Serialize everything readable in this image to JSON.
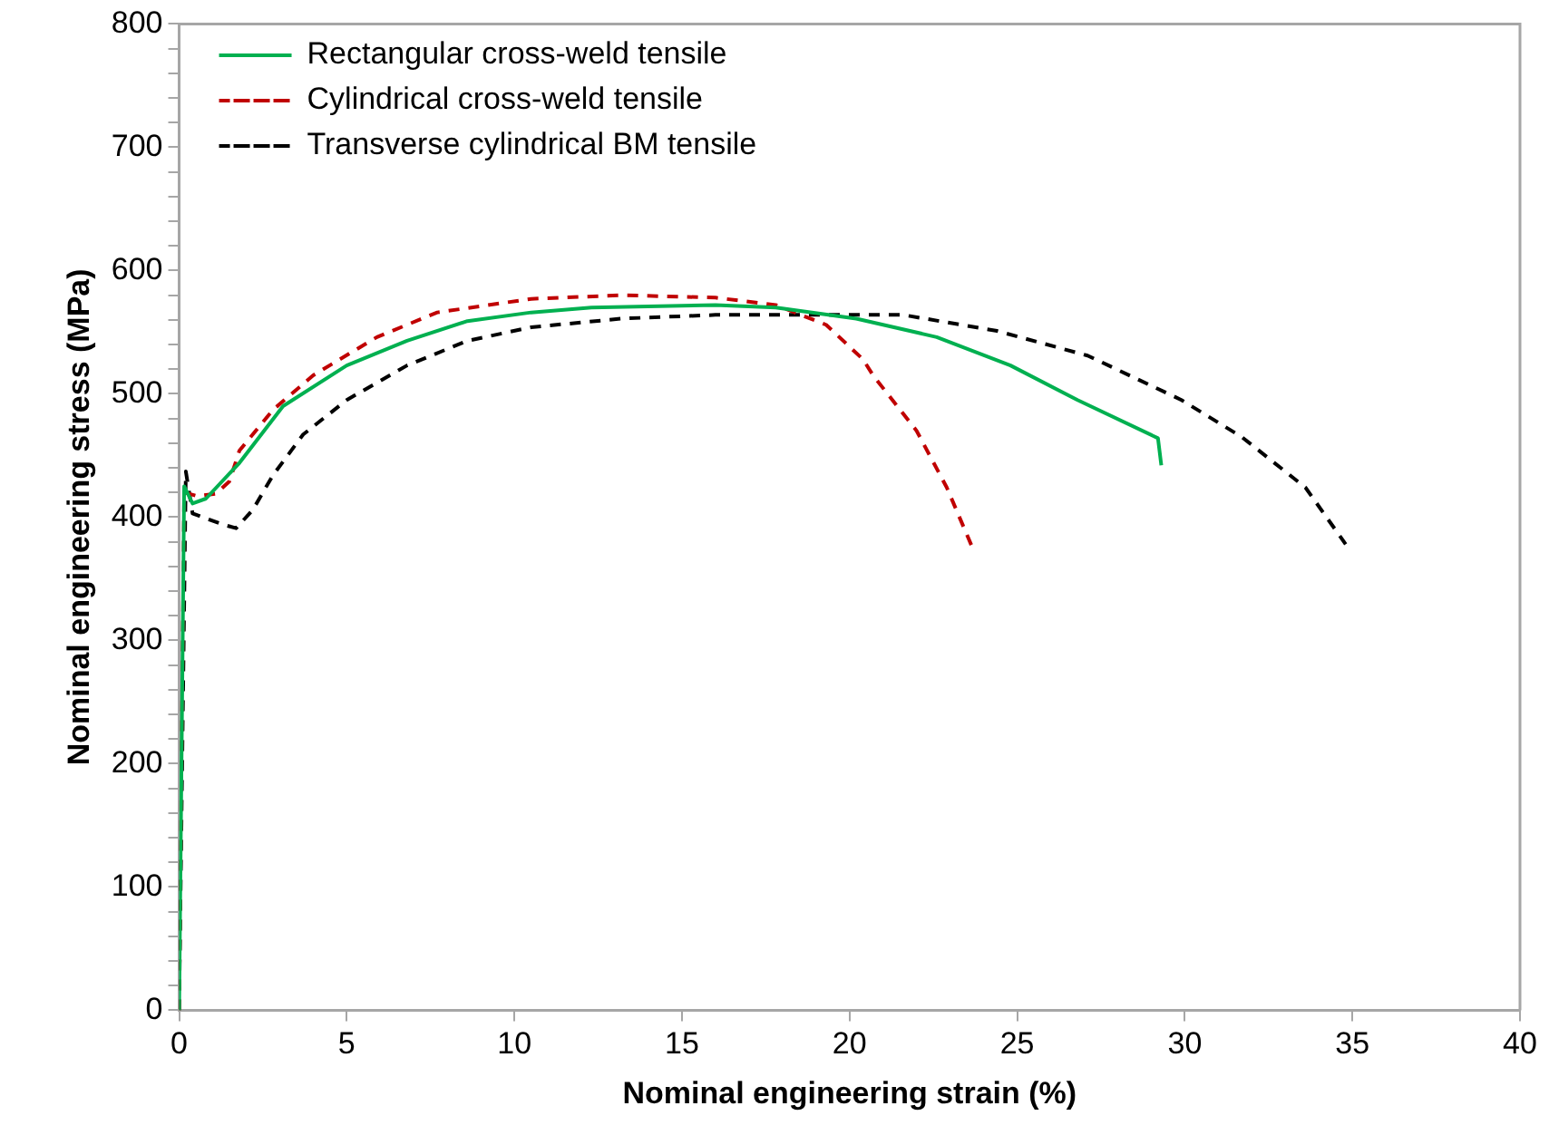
{
  "chart_data": {
    "type": "line",
    "xlabel": "Nominal engineering strain (%)",
    "ylabel": "Nominal engineering stress (MPa)",
    "xlim": [
      0,
      40
    ],
    "xticks": [
      0,
      5,
      10,
      15,
      20,
      25,
      30,
      35,
      40
    ],
    "ylim": [
      0,
      800
    ],
    "yticks": [
      0,
      {
        "value": 20,
        "label": null
      },
      {
        "value": 40,
        "label": null
      },
      {
        "value": 60,
        "label": null
      },
      {
        "value": 80,
        "label": null
      },
      100,
      {
        "value": 120,
        "label": null
      },
      {
        "value": 140,
        "label": null
      },
      {
        "value": 160,
        "label": null
      },
      {
        "value": 180,
        "label": null
      },
      200,
      {
        "value": 220,
        "label": null
      },
      {
        "value": 240,
        "label": null
      },
      {
        "value": 260,
        "label": null
      },
      {
        "value": 280,
        "label": null
      },
      300,
      {
        "value": 320,
        "label": null
      },
      {
        "value": 340,
        "label": null
      },
      {
        "value": 360,
        "label": null
      },
      {
        "value": 380,
        "label": null
      },
      400,
      {
        "value": 420,
        "label": null
      },
      {
        "value": 440,
        "label": null
      },
      {
        "value": 460,
        "label": null
      },
      {
        "value": 480,
        "label": null
      },
      500,
      {
        "value": 520,
        "label": null
      },
      {
        "value": 540,
        "label": null
      },
      {
        "value": 560,
        "label": null
      },
      {
        "value": 580,
        "label": null
      },
      600,
      {
        "value": 620,
        "label": null
      },
      {
        "value": 640,
        "label": null
      },
      {
        "value": 660,
        "label": null
      },
      {
        "value": 680,
        "label": null
      },
      700,
      {
        "value": 720,
        "label": null
      },
      {
        "value": 740,
        "label": null
      },
      {
        "value": 760,
        "label": null
      },
      {
        "value": 780,
        "label": null
      },
      800
    ],
    "grid": false,
    "legend": "top left",
    "marker": "none",
    "series": [
      {
        "name": "Rectangular cross-weld tensile",
        "color": "#00b050",
        "line_style": "solid",
        "x": [
          0,
          0.15,
          0.4,
          0.8,
          1.8,
          3.1,
          5,
          6.8,
          8.6,
          10.5,
          12.3,
          16,
          17.8,
          20.2,
          22.6,
          24.8,
          26.8,
          29.2,
          29.3
        ],
        "values": [
          0,
          425,
          411,
          415,
          444,
          490,
          523,
          543,
          559,
          566,
          570,
          572,
          570,
          561,
          546,
          523,
          495,
          464,
          442
        ]
      },
      {
        "name": "Cylindrical cross-weld tensile",
        "color": "#c00000",
        "line_style": "dashed",
        "x": [
          0,
          0.15,
          0.55,
          1.1,
          1.5,
          1.8,
          2.8,
          4,
          5.9,
          7.7,
          10.5,
          13.2,
          16,
          17.8,
          19.3,
          20.4,
          20.7,
          22,
          22.9,
          23.7
        ],
        "values": [
          0,
          420,
          417,
          419,
          429,
          454,
          487,
          515,
          546,
          566,
          577,
          580,
          578,
          572,
          556,
          528,
          515,
          470,
          424,
          373
        ]
      },
      {
        "name": "Transverse cylindrical BM tensile",
        "color": "#000000",
        "line_style": "dashed",
        "x": [
          0,
          0.2,
          0.4,
          1.3,
          1.7,
          2.2,
          2.8,
          3.7,
          5,
          6.8,
          8.6,
          10.5,
          13.2,
          16,
          19.6,
          21.6,
          24.4,
          27.1,
          29.9,
          31.7,
          33.6,
          34.8
        ],
        "values": [
          0,
          437,
          403,
          394,
          391,
          406,
          434,
          467,
          495,
          523,
          543,
          554,
          561,
          564,
          564,
          564,
          551,
          531,
          495,
          465,
          424,
          378
        ]
      }
    ]
  }
}
